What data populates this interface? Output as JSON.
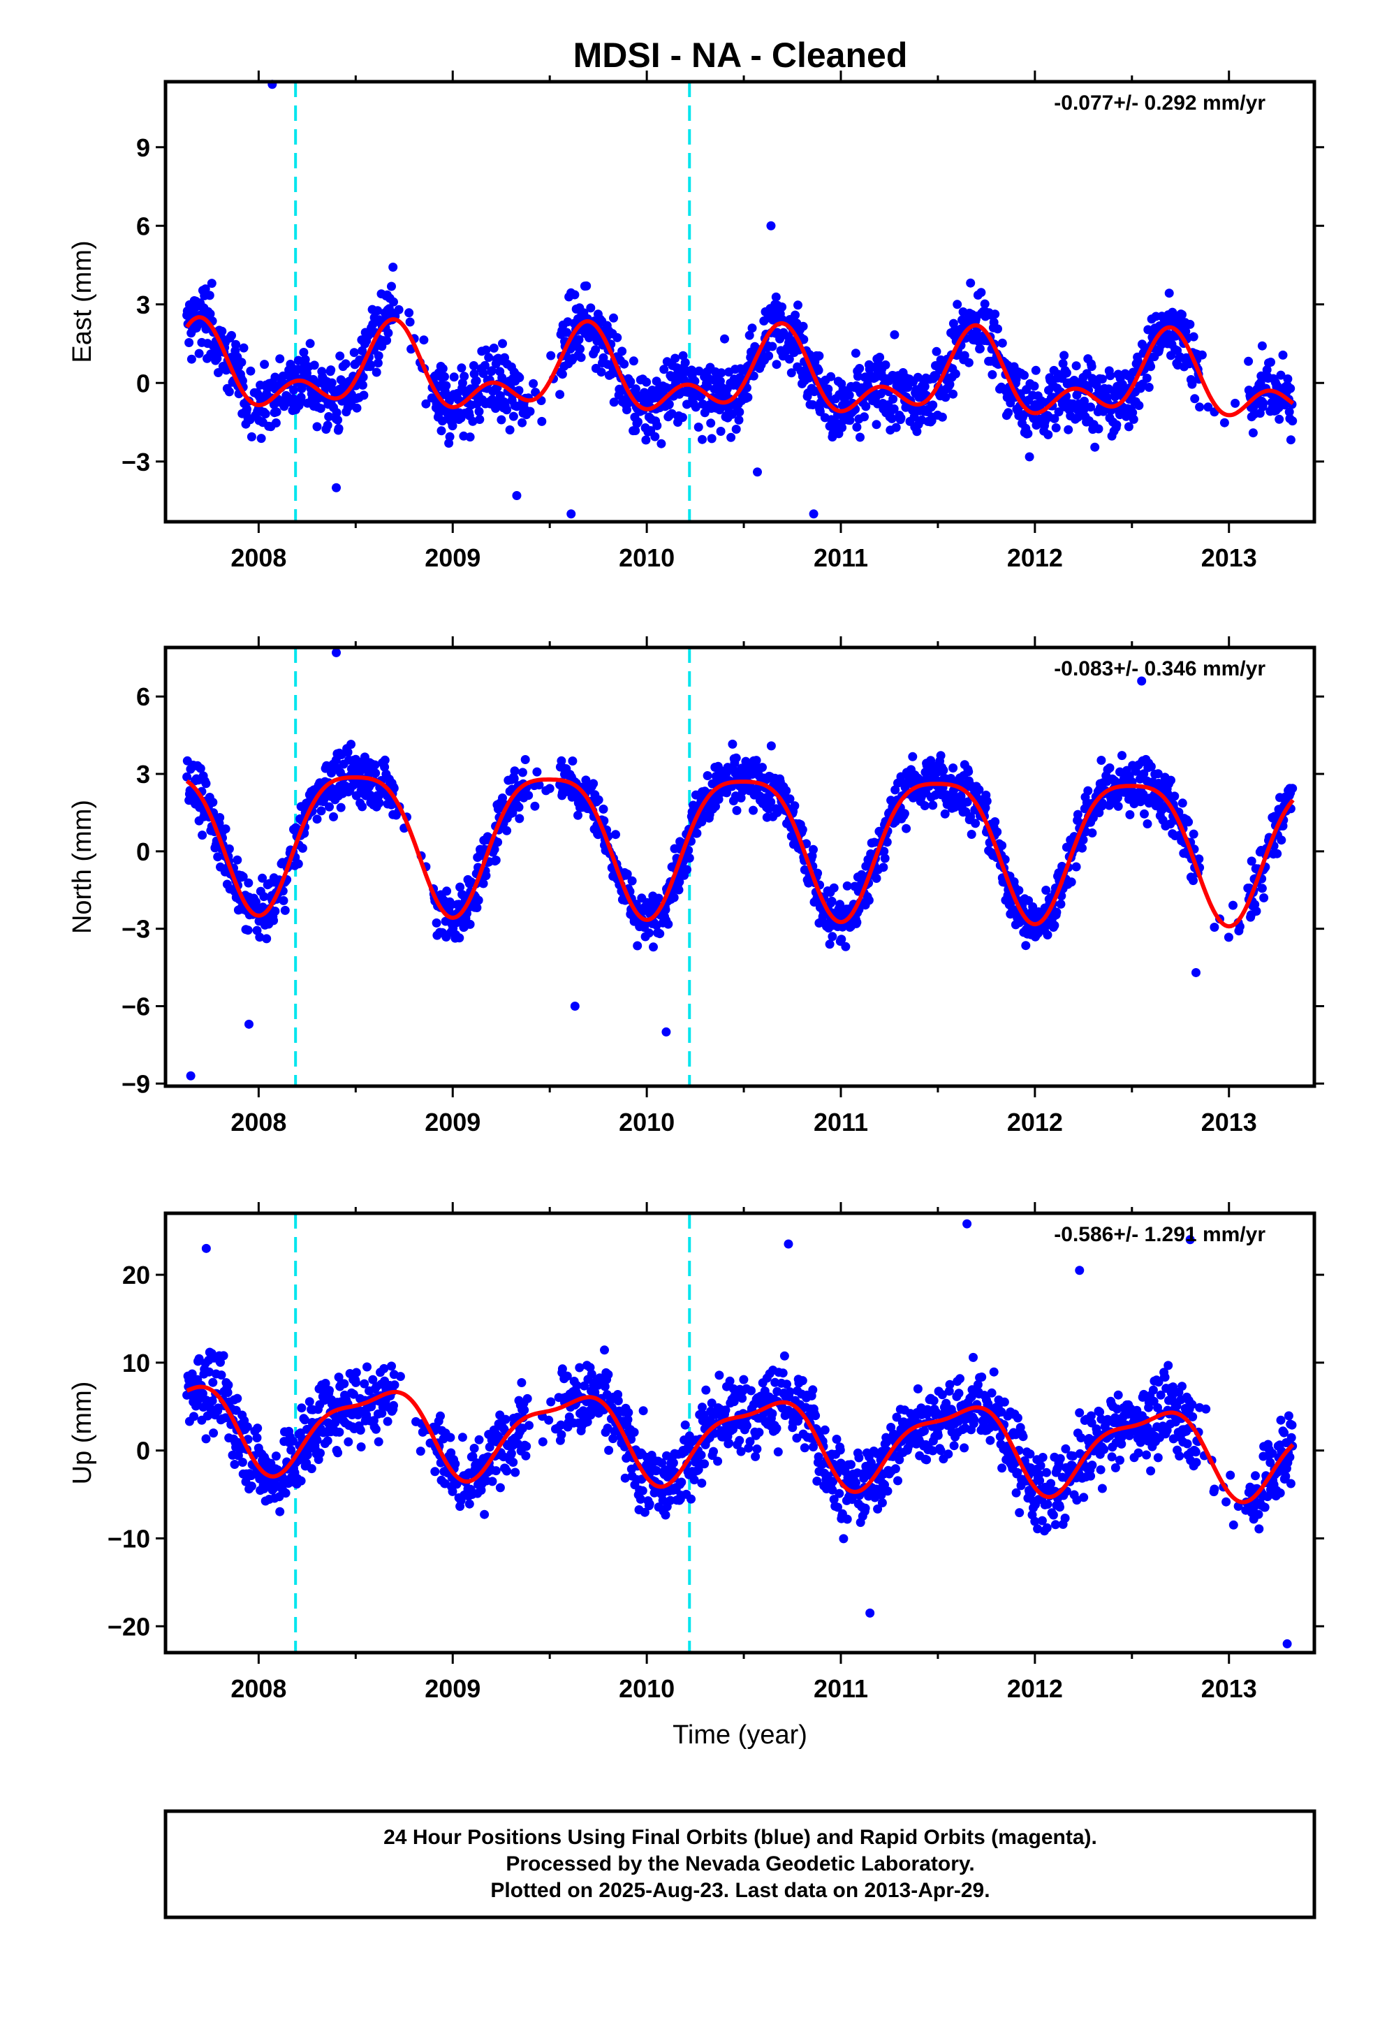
{
  "title": "MDSI  - NA - Cleaned",
  "chart_data": [
    {
      "type": "scatter",
      "ylabel": "East (mm)",
      "rate": "-0.077+/- 0.292 mm/yr",
      "ylim": [
        -5.3,
        11.5
      ],
      "yticks": [
        -3,
        0,
        3,
        6,
        9
      ],
      "xlim": [
        2007.52,
        2013.44
      ],
      "xticks": [
        2008,
        2009,
        2010,
        2011,
        2012,
        2013
      ],
      "offsets_at": [
        2008.19,
        2010.22
      ],
      "series": [
        {
          "values_note": "daily positions",
          "x_range": [
            2007.63,
            2013.33
          ]
        }
      ],
      "model": {
        "mean": 0.2,
        "trend": -0.077,
        "annual_amp": 1.2,
        "annual_phase": 0.68,
        "semiannual_amp": 0.9,
        "semiannual_phase": 0.7,
        "noise": 1.3
      },
      "outliers": [
        [
          2008.07,
          11.4
        ],
        [
          2009.61,
          -5.0
        ],
        [
          2010.57,
          -3.4
        ],
        [
          2010.86,
          -5.0
        ],
        [
          2008.4,
          -4.0
        ],
        [
          2009.33,
          -4.3
        ],
        [
          2010.64,
          6.0
        ]
      ]
    },
    {
      "type": "scatter",
      "ylabel": "North (mm)",
      "rate": "-0.083+/- 0.346 mm/yr",
      "ylim": [
        -9.1,
        7.9
      ],
      "yticks": [
        -9,
        -6,
        -3,
        0,
        3,
        6
      ],
      "xlim": [
        2007.52,
        2013.44
      ],
      "xticks": [
        2008,
        2009,
        2010,
        2011,
        2012,
        2013
      ],
      "offsets_at": [
        2008.19,
        2010.22
      ],
      "series": [
        {
          "values_note": "daily positions",
          "x_range": [
            2007.63,
            2013.33
          ]
        }
      ],
      "model": {
        "mean": 0.6,
        "trend": -0.083,
        "annual_amp": 2.7,
        "annual_phase": 0.5,
        "semiannual_amp": 0.6,
        "semiannual_phase": 0.25,
        "noise": 1.0
      },
      "outliers": [
        [
          2007.65,
          -8.7
        ],
        [
          2010.1,
          -7.0
        ],
        [
          2009.63,
          -6.0
        ],
        [
          2007.95,
          -6.7
        ],
        [
          2012.83,
          -4.7
        ],
        [
          2012.55,
          6.6
        ],
        [
          2008.4,
          7.7
        ]
      ]
    },
    {
      "type": "scatter",
      "ylabel": "Up (mm)",
      "xlabel": "Time (year)",
      "rate": "-0.586+/- 1.291 mm/yr",
      "ylim": [
        -23,
        27
      ],
      "yticks": [
        -20,
        -10,
        0,
        10,
        20
      ],
      "xlim": [
        2007.52,
        2013.44
      ],
      "xticks": [
        2008,
        2009,
        2010,
        2011,
        2012,
        2013
      ],
      "offsets_at": [
        2008.19,
        2010.22
      ],
      "series": [
        {
          "values_note": "daily positions",
          "x_range": [
            2007.63,
            2013.33
          ]
        }
      ],
      "model": {
        "mean": 1.5,
        "trend": -0.586,
        "annual_amp": 4.5,
        "annual_phase": 0.6,
        "semiannual_amp": 1.5,
        "semiannual_phase": 0.3,
        "noise": 4.2
      },
      "outliers": [
        [
          2011.65,
          25.8
        ],
        [
          2012.8,
          24.0
        ],
        [
          2010.73,
          23.5
        ],
        [
          2013.3,
          -22.0
        ],
        [
          2011.15,
          -18.5
        ],
        [
          2012.23,
          20.5
        ],
        [
          2007.73,
          23.0
        ]
      ]
    }
  ],
  "colors": {
    "points": "#0000ff",
    "fit": "#ff0000",
    "offset": "#00e5ee",
    "frame": "#000000"
  },
  "footer": {
    "line1": "24 Hour Positions Using Final Orbits (blue) and Rapid Orbits (magenta).",
    "line2": "Processed by the Nevada Geodetic Laboratory.",
    "line3": "Plotted on 2025-Aug-23. Last data on 2013-Apr-29."
  }
}
